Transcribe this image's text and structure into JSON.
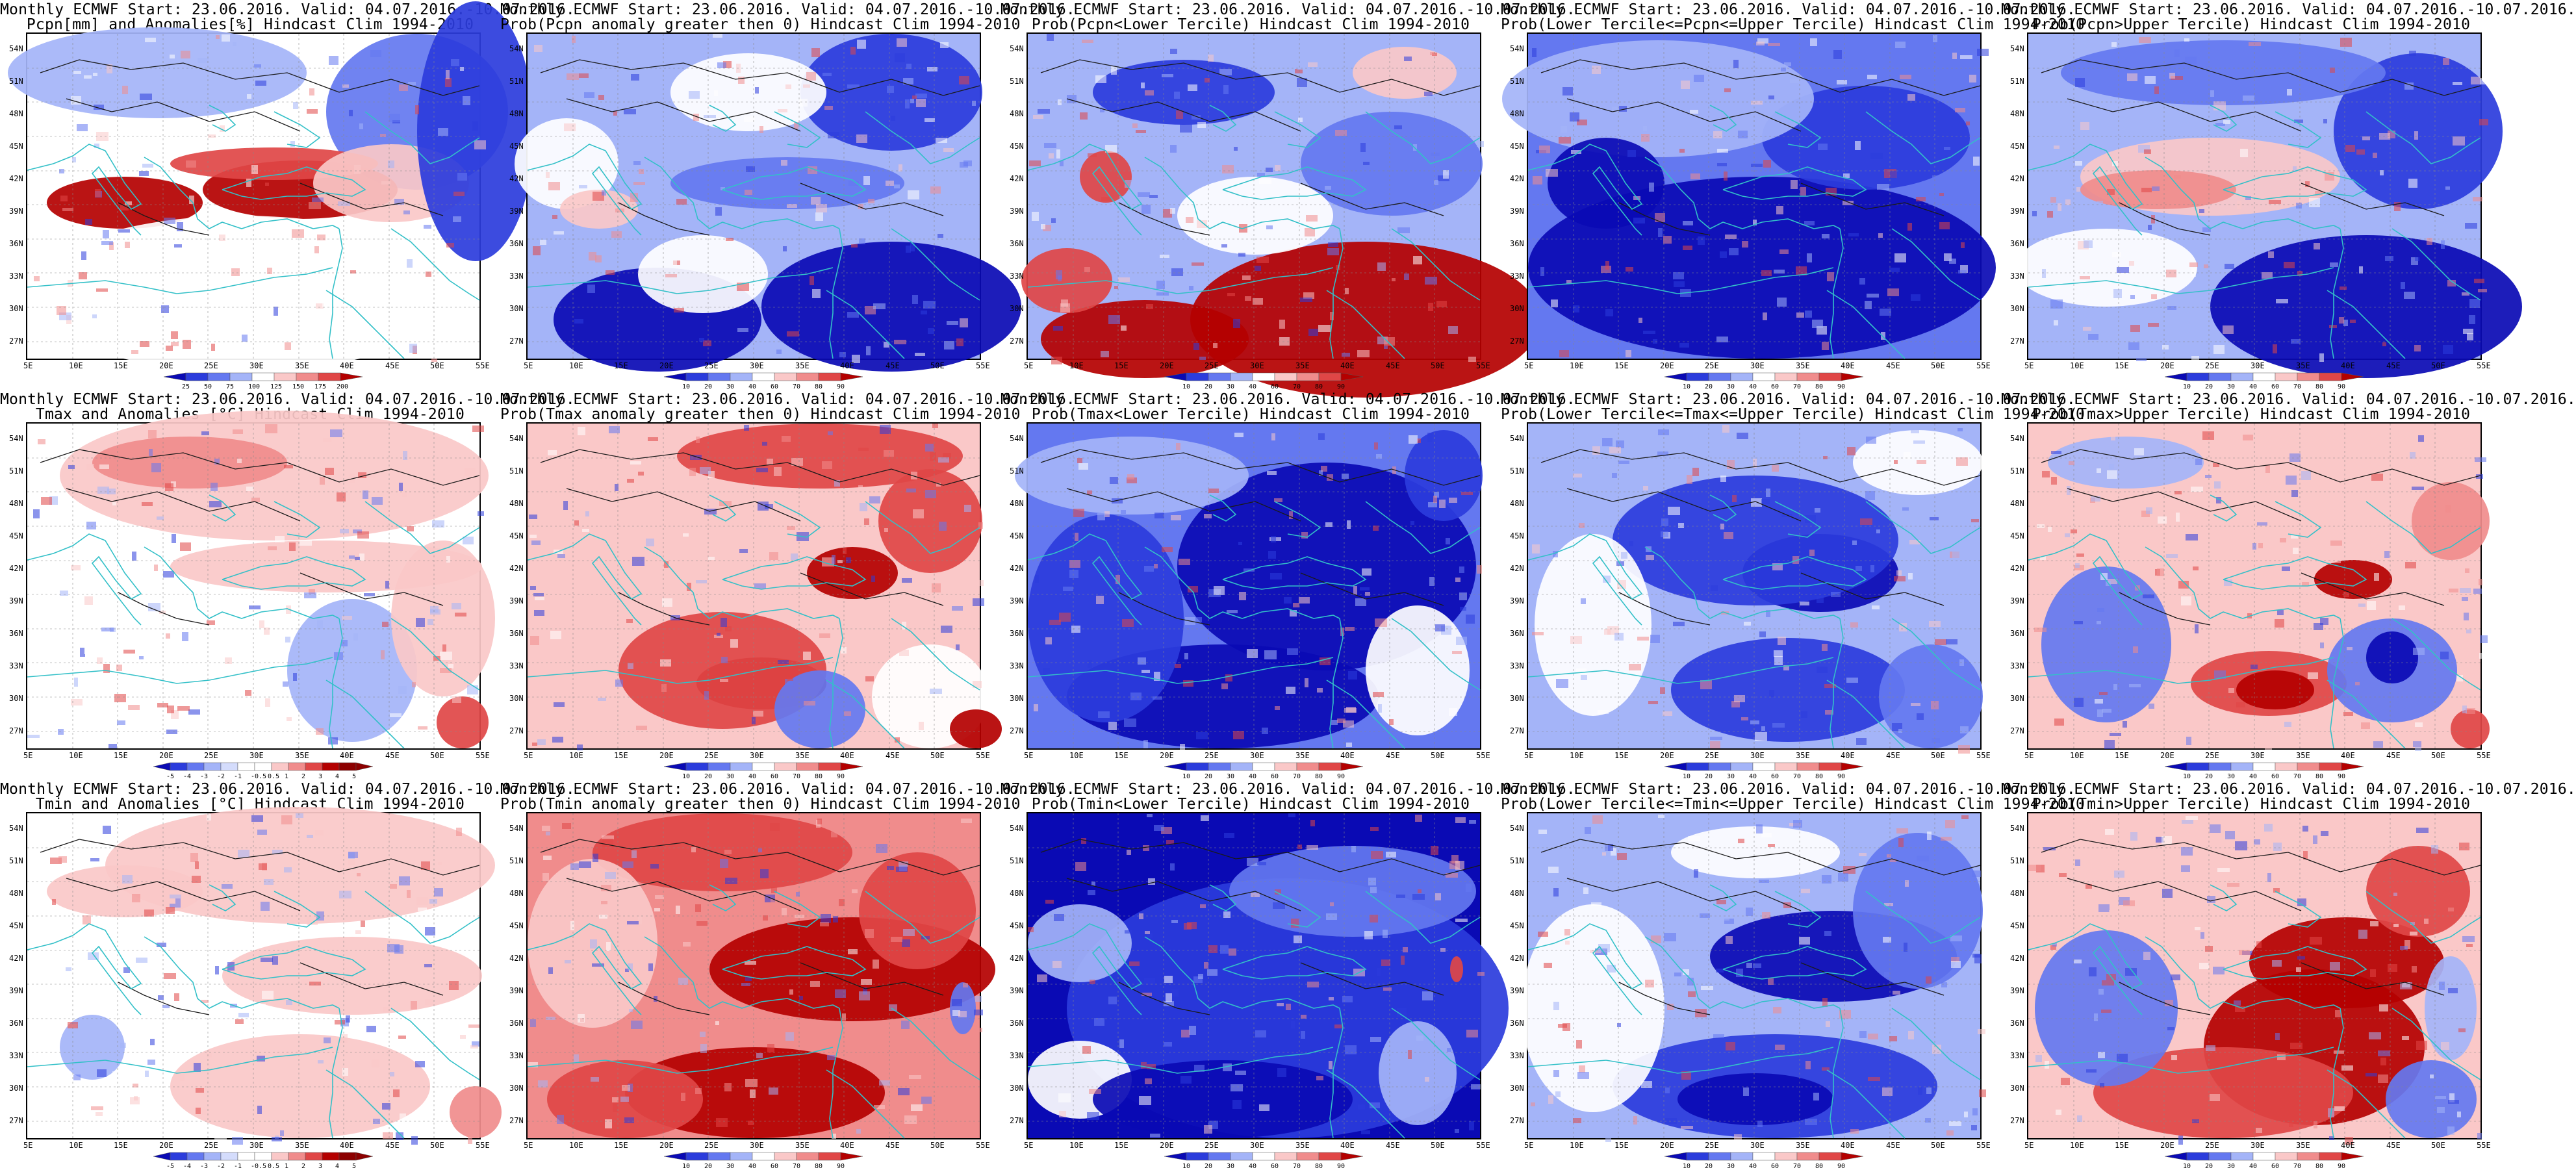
{
  "lat_labels": [
    "54N",
    "51N",
    "48N",
    "45N",
    "42N",
    "39N",
    "36N",
    "33N",
    "30N",
    "27N"
  ],
  "lon_labels": [
    "5E",
    "10E",
    "15E",
    "20E",
    "25E",
    "30E",
    "35E",
    "40E",
    "45E",
    "50E",
    "55E"
  ],
  "colors": {
    "coast": "#33c0c8",
    "contour": "#1a1a1a",
    "scale9": [
      "#1414c8",
      "#2b3cdc",
      "#6478f0",
      "#a4b4f8",
      "#ffffff",
      "#fac8c8",
      "#f08c8c",
      "#e04646",
      "#b40000",
      "#8c0000"
    ]
  },
  "colorbars": {
    "pcpn_anom": [
      "25",
      "50",
      "75",
      "100",
      "125",
      "150",
      "175",
      "200"
    ],
    "temp_anom": [
      "-5",
      "-4",
      "-3",
      "-2",
      "-1",
      "-0.5",
      "0.5",
      "1",
      "2",
      "3",
      "4",
      "5"
    ],
    "prob": [
      "10",
      "20",
      "30",
      "40",
      "60",
      "70",
      "80",
      "90"
    ]
  },
  "panels": [
    {
      "id": "pcpn-anom",
      "row": 0,
      "col": 0,
      "title1": "Monthly ECMWF Start: 23.06.2016. Valid: 04.07.2016.-10.07.2016.",
      "title2": "Pcpn[mm] and Anomalies[%] Hindcast Clim 1994-2010",
      "cbar": "pcpn_anom",
      "theme": "pcpn-anom"
    },
    {
      "id": "pcpn-prob-pos",
      "row": 0,
      "col": 1,
      "title1": "Monthly ECMWF Start: 23.06.2016. Valid: 04.07.2016.-10.07.2016.",
      "title2": "Prob(Pcpn anomaly greater then 0) Hindcast Clim 1994-2010",
      "cbar": "prob",
      "theme": "pcpn-pos"
    },
    {
      "id": "pcpn-lower",
      "row": 0,
      "col": 2,
      "title1": "Monthly ECMWF Start: 23.06.2016. Valid: 04.07.2016.-10.07.2016.",
      "title2": "Prob(Pcpn<Lower Tercile) Hindcast Clim 1994-2010",
      "cbar": "prob",
      "theme": "pcpn-lower"
    },
    {
      "id": "pcpn-middle",
      "row": 0,
      "col": 3,
      "title1": "Monthly ECMWF Start: 23.06.2016. Valid: 04.07.2016.-10.07.2016.",
      "title2": "Prob(Lower Tercile<=Pcpn<=Upper Tercile) Hindcast Clim 1994-2010",
      "cbar": "prob",
      "theme": "pcpn-mid"
    },
    {
      "id": "pcpn-upper",
      "row": 0,
      "col": 4,
      "title1": "Monthly ECMWF Start: 23.06.2016. Valid: 04.07.2016.-10.07.2016.",
      "title2": "Prob(Pcpn>Upper Tercile) Hindcast Clim 1994-2010",
      "cbar": "prob",
      "theme": "pcpn-up"
    },
    {
      "id": "tmax-anom",
      "row": 1,
      "col": 0,
      "title1": "Monthly ECMWF Start: 23.06.2016. Valid: 04.07.2016.-10.07.2016.",
      "title2": "Tmax and Anomalies [°C] Hindcast Clim 1994-2010",
      "cbar": "temp_anom",
      "theme": "tmax-anom"
    },
    {
      "id": "tmax-prob-pos",
      "row": 1,
      "col": 1,
      "title1": "Monthly ECMWF Start: 23.06.2016. Valid: 04.07.2016.-10.07.2016.",
      "title2": "Prob(Tmax anomaly greater then 0) Hindcast Clim 1994-2010",
      "cbar": "prob",
      "theme": "tmax-pos"
    },
    {
      "id": "tmax-lower",
      "row": 1,
      "col": 2,
      "title1": "Monthly ECMWF Start: 23.06.2016. Valid: 04.07.2016.-10.07.2016.",
      "title2": "Prob(Tmax<Lower Tercile) Hindcast Clim 1994-2010",
      "cbar": "prob",
      "theme": "tmax-lower"
    },
    {
      "id": "tmax-middle",
      "row": 1,
      "col": 3,
      "title1": "Monthly ECMWF Start: 23.06.2016. Valid: 04.07.2016.-10.07.2016.",
      "title2": "Prob(Lower Tercile<=Tmax<=Upper Tercile) Hindcast Clim 1994-2010",
      "cbar": "prob",
      "theme": "tmax-mid"
    },
    {
      "id": "tmax-upper",
      "row": 1,
      "col": 4,
      "title1": "Monthly ECMWF Start: 23.06.2016. Valid: 04.07.2016.-10.07.2016.",
      "title2": "Prob(Tmax>Upper Tercile) Hindcast Clim 1994-2010",
      "cbar": "prob",
      "theme": "tmax-up"
    },
    {
      "id": "tmin-anom",
      "row": 2,
      "col": 0,
      "title1": "Monthly ECMWF Start: 23.06.2016. Valid: 04.07.2016.-10.07.2016.",
      "title2": "Tmin and Anomalies [°C] Hindcast Clim 1994-2010",
      "cbar": "temp_anom",
      "theme": "tmin-anom"
    },
    {
      "id": "tmin-prob-pos",
      "row": 2,
      "col": 1,
      "title1": "Monthly ECMWF Start: 23.06.2016. Valid: 04.07.2016.-10.07.2016.",
      "title2": "Prob(Tmin anomaly greater then 0) Hindcast Clim 1994-2010",
      "cbar": "prob",
      "theme": "tmin-pos"
    },
    {
      "id": "tmin-lower",
      "row": 2,
      "col": 2,
      "title1": "Monthly ECMWF Start: 23.06.2016. Valid: 04.07.2016.-10.07.2016.",
      "title2": "Prob(Tmin<Lower Tercile) Hindcast Clim 1994-2010",
      "cbar": "prob",
      "theme": "tmin-lower"
    },
    {
      "id": "tmin-middle",
      "row": 2,
      "col": 3,
      "title1": "Monthly ECMWF Start: 23.06.2016. Valid: 04.07.2016.-10.07.2016.",
      "title2": "Prob(Lower Tercile<=Tmin<=Upper Tercile) Hindcast Clim 1994-2010",
      "cbar": "prob",
      "theme": "tmin-mid"
    },
    {
      "id": "tmin-upper",
      "row": 2,
      "col": 4,
      "title1": "Monthly ECMWF Start: 23.06.2016. Valid: 04.07.2016.-10.07.2016.",
      "title2": "Prob(Tmin>Upper Tercile) Hindcast Clim 1994-2010",
      "cbar": "prob",
      "theme": "tmin-up"
    }
  ]
}
